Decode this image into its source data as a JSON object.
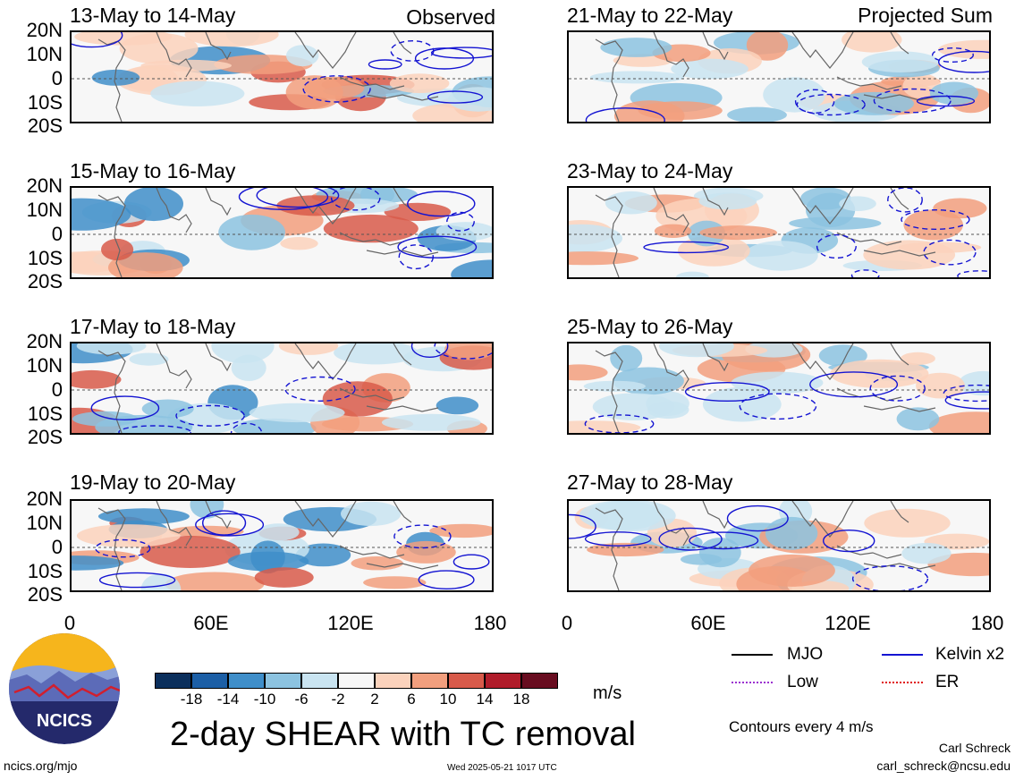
{
  "columns": [
    {
      "header": "Observed",
      "panels": [
        "13-May to 14-May",
        "15-May to 16-May",
        "17-May to 18-May",
        "19-May to 20-May"
      ]
    },
    {
      "header": "Projected Sum",
      "panels": [
        "21-May to 22-May",
        "23-May to 24-May",
        "25-May to 26-May",
        "27-May to 28-May"
      ]
    }
  ],
  "axes": {
    "lat_ticks": [
      "20N",
      "10N",
      "0",
      "10S",
      "20S"
    ],
    "lon_ticks": [
      "0",
      "60E",
      "120E",
      "180"
    ]
  },
  "colorbar": {
    "ticks": [
      "-18",
      "-14",
      "-10",
      "-6",
      "-2",
      "2",
      "6",
      "10",
      "14",
      "18"
    ],
    "colors": [
      "#0b2f5c",
      "#1c5fa6",
      "#3f8ec9",
      "#8cc3e0",
      "#c9e4f1",
      "#f7f7f7",
      "#fbd2bc",
      "#f29f7e",
      "#d85a4a",
      "#b01c2a",
      "#680d20"
    ],
    "units": "m/s"
  },
  "legend": {
    "items": [
      {
        "label": "MJO",
        "color": "#000000"
      },
      {
        "label": "Kelvin x2",
        "color": "#1414d2"
      },
      {
        "label": "Low",
        "color": "#9b30d0"
      },
      {
        "label": "ER",
        "color": "#e01010"
      }
    ],
    "contour_note": "Contours every 4 m/s"
  },
  "title": "2-day SHEAR with TC removal",
  "logo_text": "NCICS",
  "footer": {
    "left": "ncics.org/mjo",
    "center": "Wed 2025-05-21 1017 UTC",
    "author": "Carl Schreck",
    "email": "carl_schreck@ncsu.edu"
  }
}
